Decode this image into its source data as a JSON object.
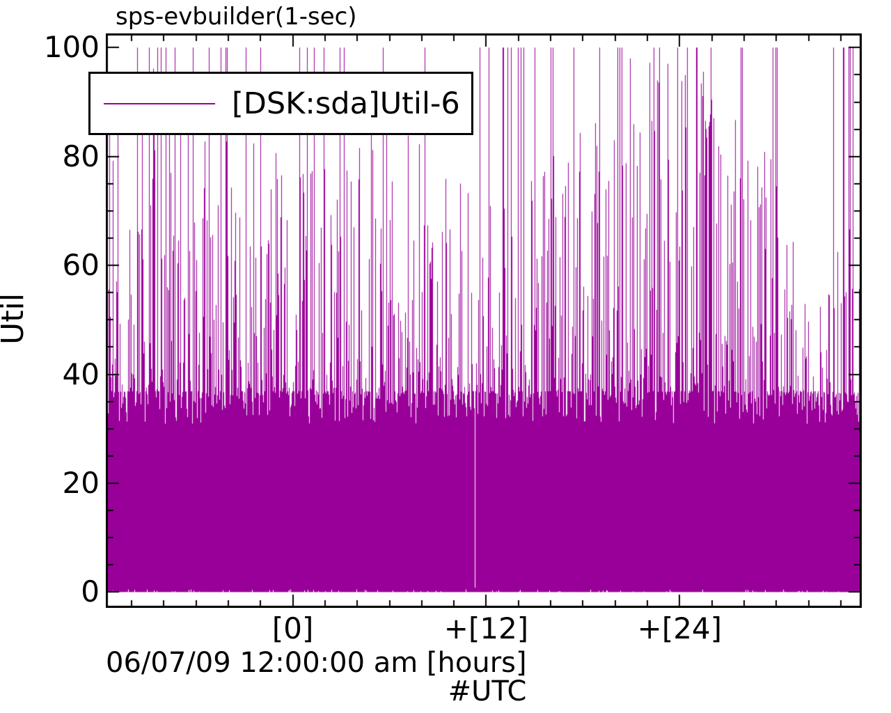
{
  "title": "sps-evbuilder(1-sec)",
  "legend": {
    "label": "[DSK:sda]Util-6",
    "line_color": "#990099"
  },
  "axes": {
    "ylabel": "Util",
    "xlabel_line1": "06/07/09 12:00:00 am [hours]",
    "xlabel_line2": "#UTC",
    "y_tick_labels": [
      "0",
      "20",
      "40",
      "60",
      "80",
      "100"
    ],
    "x_tick_labels": [
      "[0]",
      "+[12]",
      "+[24]"
    ]
  },
  "chart_data": {
    "type": "line",
    "plot_style": "impulses",
    "title": "sps-evbuilder(1-sec)",
    "ylabel": "Util",
    "xlabel": "06/07/09 12:00:00 am [hours]",
    "x_annotation": "#UTC",
    "x_epoch_label": "06/07/09 12:00:00 am UTC",
    "sampling_interval": "1-sec",
    "series": [
      {
        "name": "[DSK:sda]Util-6",
        "color": "#990099"
      }
    ],
    "ylim": [
      -2.9,
      102.6
    ],
    "xlim_hours": [
      -11.6,
      35.3
    ],
    "y_major_ticks": [
      0,
      20,
      40,
      60,
      80,
      100
    ],
    "y_minor_step": 5,
    "x_major_ticks_hours": [
      0,
      12,
      24
    ],
    "x_major_tick_labels": [
      "[0]",
      "+[12]",
      "+[24]"
    ],
    "x_minor_step_hours": 2,
    "grid": false,
    "legend_position": "top-left-inside",
    "pattern": {
      "description": "Dense 1-second disk utilization trace: solid band of samples from ~0% up to ~37% across the whole window, frequent thin spikes between 40% and 100%, many saturated spikes at 100%, spike clusters heavier between roughly +6h and +22h, single missing-data white gap column near +11.3h",
      "baseline_pct": 0,
      "solid_band_top_typical_pct": 36.9,
      "solid_band_top_min_pct": 30.9,
      "spike_probability_base": 0.45,
      "spike_probability_cluster_boost": 0.3,
      "spike_height_exponent": 2.2,
      "spike_max_pct": 100,
      "saturated_spike_probability": 0.04,
      "data_gap_hour": 11.28,
      "data_gap_low_pct": 0.8,
      "seed": 20090607
    }
  }
}
